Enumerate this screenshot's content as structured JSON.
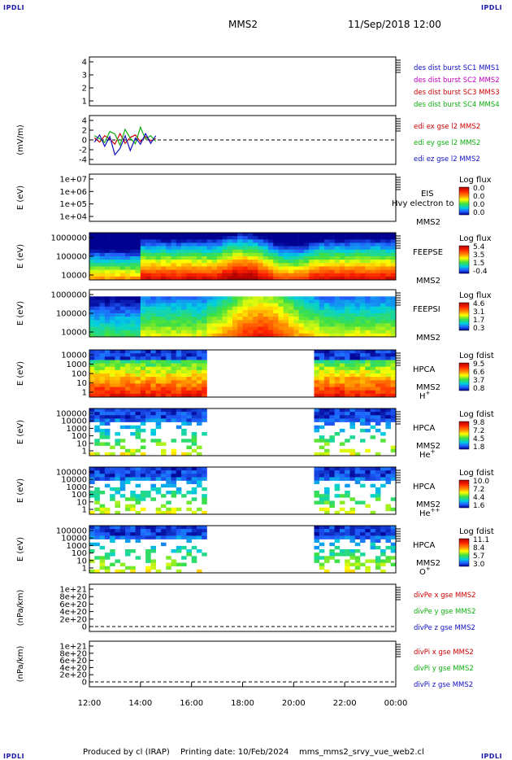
{
  "header": {
    "corner_label": "IPDLI",
    "spacecraft": "MMS2",
    "datetime": "11/Sep/2018 12:00"
  },
  "footer": {
    "producer": "Produced by cl (IRAP)",
    "printing_date": "Printing date: 10/Feb/2024",
    "filename": "mms_mms2_srvy_vue_web2.cl"
  },
  "colors": {
    "blue": "#1010c0",
    "magenta": "#c000c0",
    "red": "#cc0000",
    "green": "#10b010"
  },
  "chart_data": {
    "type": "multi-panel time series",
    "x_axis": {
      "range": [
        "12:00",
        "00:00"
      ],
      "ticks": [
        "12:00",
        "14:00",
        "16:00",
        "18:00",
        "20:00",
        "22:00",
        "00:00"
      ]
    },
    "panels": [
      {
        "id": "dist",
        "type": "line",
        "ylabel": "",
        "ticks": [
          "4",
          "3",
          "2",
          "1"
        ],
        "legend": [
          {
            "text": "des dist burst SC1 MMS1",
            "color": "#1010c0"
          },
          {
            "text": "des dist burst SC2 MMS2",
            "color": "#c000c0"
          },
          {
            "text": "des dist burst SC3 MMS3",
            "color": "#cc0000"
          },
          {
            "text": "des dist burst SC4 MMS4",
            "color": "#10b010"
          }
        ]
      },
      {
        "id": "edi",
        "type": "line",
        "ylabel": "(mV/m)",
        "ticks": [
          "4",
          "2",
          "0",
          "-2",
          "-4"
        ],
        "yrange": [
          -5,
          5
        ],
        "legend": [
          {
            "text": "edi ex gse l2 MMS2",
            "color": "#cc0000"
          },
          {
            "text": "edi ey gse l2 MMS2",
            "color": "#10b010"
          },
          {
            "text": "edi ez gse l2 MMS2",
            "color": "#1010c0"
          }
        ],
        "time_hours": [
          12.2,
          12.4,
          12.6,
          12.8,
          13.0,
          13.2,
          13.4,
          13.6,
          13.8,
          14.0,
          14.2,
          14.4,
          14.6
        ],
        "ex": [
          0.5,
          -0.5,
          1.0,
          0.2,
          -1.0,
          1.5,
          -0.8,
          0.6,
          1.2,
          -0.4,
          0.8,
          -0.2,
          0.3
        ],
        "ey": [
          1.0,
          0.3,
          -0.6,
          2.0,
          1.4,
          -1.2,
          2.5,
          0.4,
          -0.9,
          3.0,
          0.2,
          1.0,
          -0.3
        ],
        "ez": [
          -0.5,
          1.2,
          -1.5,
          0.8,
          -3.5,
          -2.0,
          1.0,
          -2.5,
          0.5,
          -1.0,
          1.5,
          -0.8,
          1.0
        ]
      },
      {
        "id": "eis",
        "type": "spectrogram",
        "ylabel": "E (eV)",
        "ticks": [
          "1e+07",
          "1e+06",
          "1e+05",
          "1e+04"
        ],
        "labels": [
          "EIS",
          "Hvy electron to",
          "MMS2"
        ],
        "colorbar_title": "Log flux",
        "colorbar_values": [
          "0.0",
          "0.0",
          "0.0",
          "0.0"
        ]
      },
      {
        "id": "feepse",
        "type": "spectrogram",
        "ylabel": "E (eV)",
        "ticks": [
          "1000000",
          "100000",
          "10000"
        ],
        "labels": [
          "FEEPSE",
          "MMS2"
        ],
        "colorbar_title": "Log flux",
        "colorbar_values": [
          "5.4",
          "3.5",
          "1.5",
          "-0.4"
        ]
      },
      {
        "id": "feepsi",
        "type": "spectrogram",
        "ylabel": "E (eV)",
        "ticks": [
          "1000000",
          "100000",
          "10000"
        ],
        "labels": [
          "FEEPSI",
          "MMS2"
        ],
        "colorbar_title": "Log flux",
        "colorbar_values": [
          "4.6",
          "3.1",
          "1.7",
          "0.3"
        ]
      },
      {
        "id": "hpca_h",
        "type": "spectrogram",
        "ylabel": "E (eV)",
        "ticks": [
          "10000",
          "1000",
          "100",
          "10",
          "1"
        ],
        "labels": [
          "HPCA",
          "MMS2"
        ],
        "species": "H",
        "species_sup": "+",
        "colorbar_title": "Log fdist",
        "colorbar_values": [
          "9.5",
          "6.6",
          "3.7",
          "0.8"
        ]
      },
      {
        "id": "hpca_he",
        "type": "spectrogram",
        "ylabel": "E (eV)",
        "ticks": [
          "100000",
          "10000",
          "1000",
          "100",
          "10",
          "1"
        ],
        "labels": [
          "HPCA",
          "MMS2"
        ],
        "species": "He",
        "species_sup": "+",
        "colorbar_title": "Log fdist",
        "colorbar_values": [
          "9.8",
          "7.2",
          "4.5",
          "1.8"
        ]
      },
      {
        "id": "hpca_hepp",
        "type": "spectrogram",
        "ylabel": "E (eV)",
        "ticks": [
          "100000",
          "10000",
          "1000",
          "100",
          "10",
          "1"
        ],
        "labels": [
          "HPCA",
          "MMS2"
        ],
        "species": "He",
        "species_sup": "++",
        "colorbar_title": "Log fdist",
        "colorbar_values": [
          "10.0",
          "7.2",
          "4.4",
          "1.6"
        ]
      },
      {
        "id": "hpca_o",
        "type": "spectrogram",
        "ylabel": "E (eV)",
        "ticks": [
          "100000",
          "10000",
          "1000",
          "100",
          "10",
          "1"
        ],
        "labels": [
          "HPCA",
          "MMS2"
        ],
        "species": "O",
        "species_sup": "+",
        "colorbar_title": "Log fdist",
        "colorbar_values": [
          "11.1",
          "8.4",
          "5.7",
          "3.0"
        ]
      },
      {
        "id": "divpe",
        "type": "line",
        "ylabel": "(nPa/km)",
        "ticks": [
          "1e+21",
          "8e+20",
          "6e+20",
          "4e+20",
          "2e+20",
          "0"
        ],
        "legend": [
          {
            "text": "divPe x gse MMS2",
            "color": "#cc0000"
          },
          {
            "text": "divPe y gse MMS2",
            "color": "#10b010"
          },
          {
            "text": "divPe z gse MMS2",
            "color": "#1010c0"
          }
        ]
      },
      {
        "id": "divpi",
        "type": "line",
        "ylabel": "(nPa/km)",
        "ticks": [
          "1e+21",
          "8e+20",
          "6e+20",
          "4e+20",
          "2e+20",
          "0"
        ],
        "legend": [
          {
            "text": "divPi x gse MMS2",
            "color": "#cc0000"
          },
          {
            "text": "divPi y gse MMS2",
            "color": "#10b010"
          },
          {
            "text": "divPi z gse MMS2",
            "color": "#1010c0"
          }
        ]
      }
    ]
  }
}
